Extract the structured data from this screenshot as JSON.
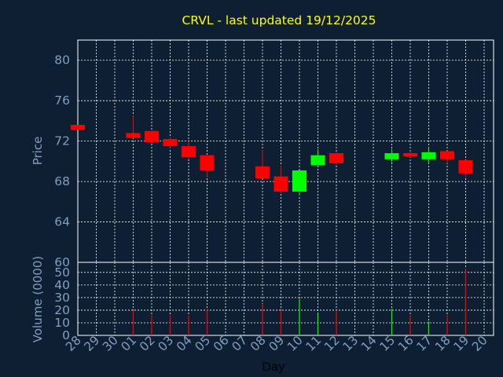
{
  "colors": {
    "background": "#0f1f33",
    "grid": "#ffffff",
    "up": "#00ff00",
    "down": "#ff0000",
    "title": "#ffff00",
    "axis_text": "#7f9fbf",
    "xlabel_text": "#000000"
  },
  "chart_data": [
    {
      "type": "candlestick",
      "title": "CRVL - last updated 19/12/2025",
      "ylabel": "Price",
      "xlabel": "",
      "ylim": [
        60,
        82
      ],
      "yticks": [
        60,
        64,
        68,
        72,
        76,
        80
      ],
      "grid": true,
      "x_tick_labels": [
        "28",
        "29",
        "30",
        "01",
        "02",
        "03",
        "04",
        "05",
        "06",
        "07",
        "08",
        "09",
        "10",
        "11",
        "12",
        "13",
        "14",
        "15",
        "16",
        "17",
        "18",
        "19",
        "20"
      ],
      "candles": [
        {
          "day": "28",
          "open": 73.6,
          "high": 73.6,
          "low": 73.1,
          "close": 73.1
        },
        {
          "day": "01",
          "open": 72.8,
          "high": 74.5,
          "low": 72.3,
          "close": 72.3
        },
        {
          "day": "02",
          "open": 73.0,
          "high": 73.0,
          "low": 71.8,
          "close": 71.9
        },
        {
          "day": "03",
          "open": 72.2,
          "high": 72.4,
          "low": 71.3,
          "close": 71.5
        },
        {
          "day": "04",
          "open": 71.5,
          "high": 72.0,
          "low": 70.2,
          "close": 70.4
        },
        {
          "day": "05",
          "open": 70.6,
          "high": 70.6,
          "low": 68.5,
          "close": 69.1
        },
        {
          "day": "08",
          "open": 69.5,
          "high": 71.1,
          "low": 68.3,
          "close": 68.3
        },
        {
          "day": "09",
          "open": 68.5,
          "high": 69.6,
          "low": 66.9,
          "close": 67.0
        },
        {
          "day": "10",
          "open": 67.0,
          "high": 69.1,
          "low": 66.6,
          "close": 69.1
        },
        {
          "day": "11",
          "open": 69.6,
          "high": 71.2,
          "low": 69.6,
          "close": 70.6
        },
        {
          "day": "12",
          "open": 70.8,
          "high": 70.9,
          "low": 69.6,
          "close": 69.8
        },
        {
          "day": "15",
          "open": 70.2,
          "high": 71.2,
          "low": 69.9,
          "close": 70.8
        },
        {
          "day": "16",
          "open": 70.8,
          "high": 71.0,
          "low": 70.4,
          "close": 70.5
        },
        {
          "day": "17",
          "open": 70.2,
          "high": 71.4,
          "low": 69.8,
          "close": 70.9
        },
        {
          "day": "18",
          "open": 71.0,
          "high": 71.0,
          "low": 69.8,
          "close": 70.2
        },
        {
          "day": "19",
          "open": 70.1,
          "high": 70.1,
          "low": 68.4,
          "close": 68.8
        }
      ]
    },
    {
      "type": "bar",
      "title": "",
      "ylabel": "Volume (0000)",
      "xlabel": "Day",
      "ylim": [
        0,
        58
      ],
      "yticks": [
        0,
        10,
        20,
        30,
        40,
        50
      ],
      "grid": true,
      "x_tick_labels": [
        "28",
        "29",
        "30",
        "01",
        "02",
        "03",
        "04",
        "05",
        "06",
        "07",
        "08",
        "09",
        "10",
        "11",
        "12",
        "13",
        "14",
        "15",
        "16",
        "17",
        "18",
        "19",
        "20"
      ],
      "bars": [
        {
          "day": "01",
          "value": 20,
          "direction": "down"
        },
        {
          "day": "02",
          "value": 16,
          "direction": "down"
        },
        {
          "day": "03",
          "value": 16,
          "direction": "down"
        },
        {
          "day": "04",
          "value": 16,
          "direction": "down"
        },
        {
          "day": "05",
          "value": 21,
          "direction": "down"
        },
        {
          "day": "08",
          "value": 25,
          "direction": "down"
        },
        {
          "day": "09",
          "value": 20,
          "direction": "down"
        },
        {
          "day": "10",
          "value": 29,
          "direction": "up"
        },
        {
          "day": "11",
          "value": 17,
          "direction": "up"
        },
        {
          "day": "12",
          "value": 20,
          "direction": "down"
        },
        {
          "day": "15",
          "value": 21,
          "direction": "up"
        },
        {
          "day": "16",
          "value": 16,
          "direction": "down"
        },
        {
          "day": "17",
          "value": 11,
          "direction": "up"
        },
        {
          "day": "18",
          "value": 16,
          "direction": "down"
        },
        {
          "day": "19",
          "value": 53,
          "direction": "down"
        }
      ]
    }
  ]
}
